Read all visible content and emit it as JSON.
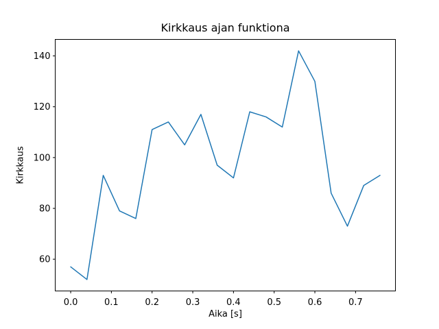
{
  "chart_data": {
    "type": "line",
    "title": "Kirkkaus ajan funktiona",
    "xlabel": "Aika [s]",
    "ylabel": "Kirkkaus",
    "x": [
      0.0,
      0.04,
      0.08,
      0.12,
      0.16,
      0.2,
      0.24,
      0.28,
      0.32,
      0.36,
      0.4,
      0.44,
      0.48,
      0.52,
      0.56,
      0.6,
      0.64,
      0.68,
      0.72,
      0.76
    ],
    "y": [
      57,
      52,
      93,
      79,
      76,
      111,
      114,
      105,
      117,
      97,
      92,
      118,
      116,
      112,
      142,
      130,
      86,
      73,
      89,
      93
    ],
    "xlim": [
      -0.038,
      0.798
    ],
    "ylim": [
      47.5,
      146.5
    ],
    "xticks": [
      0.0,
      0.1,
      0.2,
      0.3,
      0.4,
      0.5,
      0.6,
      0.7
    ],
    "xtick_labels": [
      "0.0",
      "0.1",
      "0.2",
      "0.3",
      "0.4",
      "0.5",
      "0.6",
      "0.7"
    ],
    "yticks": [
      60,
      80,
      100,
      120,
      140
    ],
    "ytick_labels": [
      "60",
      "80",
      "100",
      "120",
      "140"
    ],
    "line_color": "#1f77b4",
    "spine_color": "#000000",
    "background_color": "#ffffff",
    "grid": false,
    "legend_position": "none"
  }
}
